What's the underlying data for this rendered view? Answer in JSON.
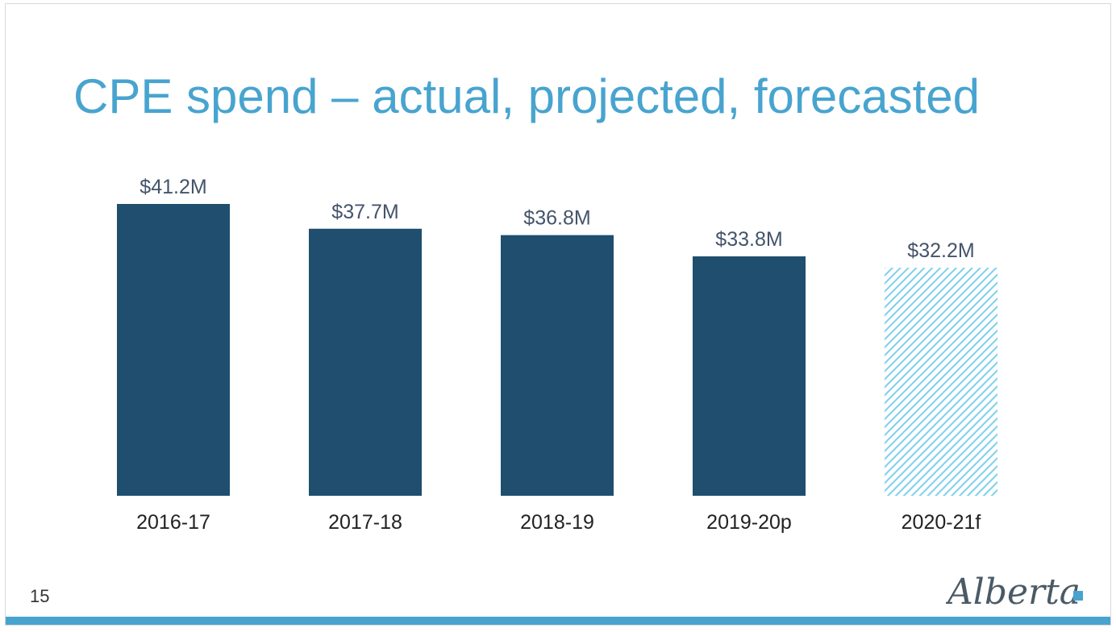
{
  "slide": {
    "title": "CPE spend – actual, projected, forecasted",
    "page_number": "15",
    "logo_text": "Alberta"
  },
  "colors": {
    "title": "#48a4cf",
    "bar": "#1f4e6e",
    "forecast_hatch": "#7fd0ec",
    "footer_band": "#48a4cf",
    "logo_text": "#4a5a66",
    "logo_square": "#48a4cf",
    "value_label": "#44546a",
    "category_label": "#222222"
  },
  "chart_data": {
    "type": "bar",
    "categories": [
      "2016-17",
      "2017-18",
      "2018-19",
      "2019-20p",
      "2020-21f"
    ],
    "values": [
      41.2,
      37.7,
      36.8,
      33.8,
      32.2
    ],
    "data_labels": [
      "$41.2M",
      "$37.7M",
      "$36.8M",
      "$33.8M",
      "$32.2M"
    ],
    "bar_styles": [
      "solid",
      "solid",
      "solid",
      "solid",
      "hatched"
    ],
    "title": "",
    "xlabel": "",
    "ylabel": "",
    "ylim": [
      0,
      41.2
    ],
    "grid": false,
    "legend": "none"
  }
}
